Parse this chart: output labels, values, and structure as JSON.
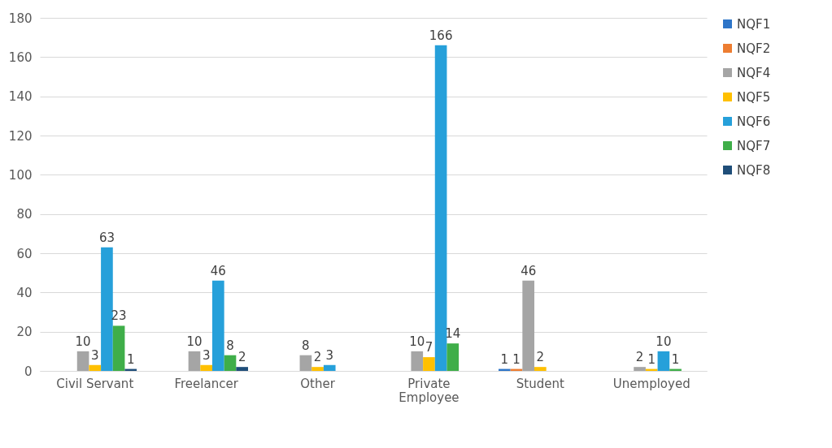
{
  "chart_data": {
    "type": "bar",
    "categories": [
      "Civil Servant",
      "Freelancer",
      "Other",
      "Private Employee",
      "Student",
      "Unemployed"
    ],
    "series": [
      {
        "name": "NQF1",
        "color": "#2e75c8",
        "values": [
          null,
          null,
          null,
          null,
          1,
          null
        ]
      },
      {
        "name": "NQF2",
        "color": "#ed7d31",
        "values": [
          null,
          null,
          null,
          null,
          1,
          null
        ]
      },
      {
        "name": "NQF4",
        "color": "#a5a5a5",
        "values": [
          10,
          10,
          8,
          10,
          46,
          2
        ]
      },
      {
        "name": "NQF5",
        "color": "#ffc000",
        "values": [
          3,
          3,
          2,
          7,
          2,
          1
        ]
      },
      {
        "name": "NQF6",
        "color": "#26a0da",
        "values": [
          63,
          46,
          3,
          166,
          null,
          10
        ]
      },
      {
        "name": "NQF7",
        "color": "#3fae49",
        "values": [
          23,
          8,
          null,
          14,
          null,
          1
        ]
      },
      {
        "name": "NQF8",
        "color": "#1f4e79",
        "values": [
          1,
          2,
          null,
          null,
          null,
          null
        ]
      }
    ],
    "ylim": [
      0,
      180
    ],
    "yticks": [
      0,
      20,
      40,
      60,
      80,
      100,
      120,
      140,
      160,
      180
    ],
    "grid": "y",
    "legend": "right",
    "data_labels": true
  }
}
